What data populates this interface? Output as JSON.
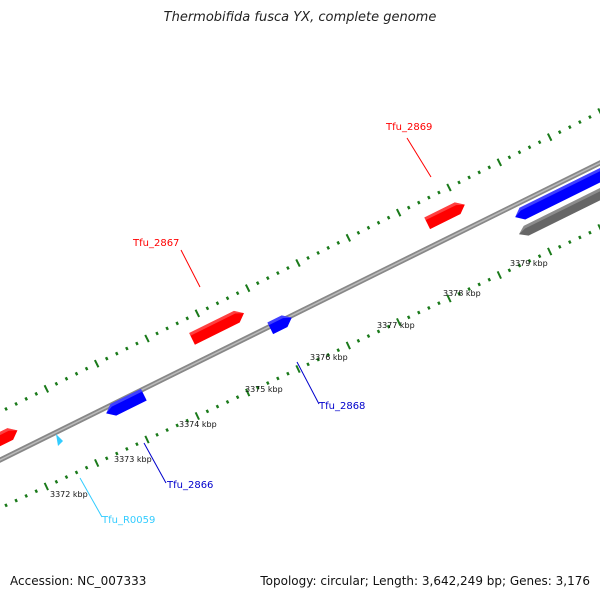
{
  "title": "Thermobifida fusca YX, complete genome",
  "footer": {
    "accession": "Accession: NC_007333",
    "summary": "Topology: circular; Length: 3,642,249 bp; Genes: 3,176"
  },
  "colors": {
    "forward_gene": "#ff0000",
    "reverse_gene": "#0000ff",
    "rna_gene": "#33ccff",
    "other_feature": "#666666",
    "backbone": "#888888",
    "tick": "#1a7a1a"
  },
  "scale_ticks": [
    "3372 kbp",
    "3373 kbp",
    "3374 kbp",
    "3375 kbp",
    "3376 kbp",
    "3377 kbp",
    "3378 kbp",
    "3379 kbp"
  ],
  "gene_labels": [
    {
      "name": "Tfu_2869",
      "strand": "forward"
    },
    {
      "name": "Tfu_2867",
      "strand": "forward"
    },
    {
      "name": "Tfu_2868",
      "strand": "reverse"
    },
    {
      "name": "Tfu_2866",
      "strand": "reverse"
    },
    {
      "name": "Tfu_R0059",
      "strand": "rna"
    }
  ]
}
